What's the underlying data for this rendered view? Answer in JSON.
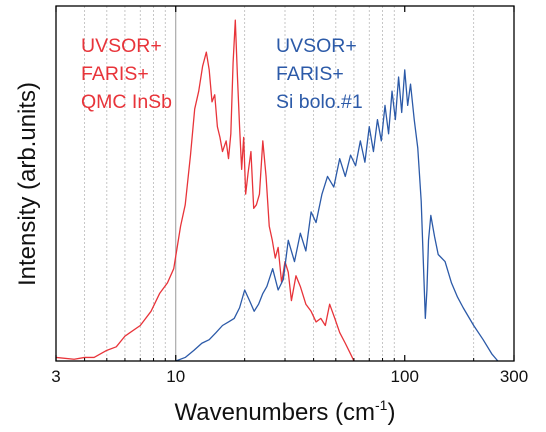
{
  "chart_data": {
    "type": "line",
    "title": "",
    "xlabel_prefix": "Wavenumbers (cm",
    "xlabel_sup": "-1",
    "xlabel_suffix": ")",
    "ylabel": "Intensity (arb.units)",
    "x_scale": "log",
    "xlim": [
      3,
      300
    ],
    "ylim": [
      0,
      1
    ],
    "x_ticks": [
      {
        "value": 3,
        "label": "3"
      },
      {
        "value": 10,
        "label": "10"
      },
      {
        "value": 100,
        "label": "100"
      },
      {
        "value": 300,
        "label": "300"
      }
    ],
    "y_ticks_labeled": false,
    "grid": "vertical dashed at minor decades",
    "minor_grid_x": [
      4,
      5,
      6,
      7,
      8,
      9,
      20,
      30,
      40,
      50,
      60,
      70,
      80,
      90,
      200
    ],
    "solid_line_at_x": 10,
    "legend": "none",
    "annotations": [
      {
        "lines": [
          "UVSOR+",
          "FARIS+",
          "QMC InSb"
        ],
        "color": "#e8343a"
      },
      {
        "lines": [
          "UVSOR+",
          "FARIS+",
          "Si bolo.#1"
        ],
        "color": "#2c5aa8"
      }
    ],
    "series": [
      {
        "color": "#e8343a",
        "x": [
          3.0,
          3.6,
          4.0,
          4.4,
          5.0,
          5.5,
          6.0,
          7.0,
          7.8,
          8.5,
          9.2,
          9.8,
          10.5,
          11.0,
          11.6,
          12.1,
          12.6,
          13.1,
          13.6,
          14.0,
          14.4,
          14.8,
          15.2,
          15.6,
          16.0,
          16.6,
          17.0,
          17.4,
          17.8,
          18.2,
          18.6,
          19.0,
          19.4,
          19.8,
          20.2,
          20.7,
          21.3,
          21.9,
          22.5,
          23.2,
          24.0,
          24.8,
          25.6,
          26.4,
          27.2,
          28.0,
          29.0,
          30.0,
          31.0,
          32.0,
          33.5,
          35.0,
          37.0,
          39.0,
          41.0,
          43.0,
          45.0,
          47.0,
          49.5,
          52.0,
          55.0,
          58.0,
          60.0
        ],
        "y": [
          0.01,
          0.005,
          0.01,
          0.01,
          0.03,
          0.04,
          0.07,
          0.1,
          0.14,
          0.19,
          0.22,
          0.26,
          0.38,
          0.44,
          0.58,
          0.71,
          0.76,
          0.83,
          0.87,
          0.82,
          0.73,
          0.75,
          0.66,
          0.63,
          0.59,
          0.62,
          0.57,
          0.64,
          0.84,
          0.96,
          0.8,
          0.66,
          0.54,
          0.63,
          0.47,
          0.53,
          0.59,
          0.43,
          0.44,
          0.47,
          0.62,
          0.52,
          0.38,
          0.34,
          0.29,
          0.32,
          0.22,
          0.28,
          0.25,
          0.17,
          0.24,
          0.21,
          0.16,
          0.14,
          0.11,
          0.12,
          0.1,
          0.16,
          0.12,
          0.08,
          0.05,
          0.02,
          0.0
        ]
      },
      {
        "color": "#2c5aa8",
        "x": [
          10.0,
          11.0,
          12.0,
          13.0,
          14.0,
          15.0,
          16.0,
          17.0,
          18.0,
          19.0,
          20.0,
          21.0,
          22.0,
          23.0,
          24.0,
          25.0,
          26.5,
          28.0,
          29.5,
          31.0,
          33.0,
          35.0,
          37.0,
          39.0,
          41.0,
          43.5,
          46.0,
          49.0,
          52.0,
          55.0,
          58.0,
          61.0,
          64.0,
          67.0,
          70.0,
          73.0,
          76.0,
          79.0,
          82.0,
          85.0,
          88.0,
          91.0,
          94.0,
          97.0,
          100.0,
          103.0,
          106.0,
          110.0,
          114.0,
          118.0,
          121.0,
          123.0,
          125.0,
          127.0,
          130.0,
          135.0,
          140.0,
          150.0,
          160.0,
          170.0,
          180.0,
          200.0,
          220.0,
          240.0,
          255.0
        ],
        "y": [
          0.0,
          0.01,
          0.03,
          0.05,
          0.06,
          0.08,
          0.1,
          0.11,
          0.12,
          0.15,
          0.2,
          0.17,
          0.14,
          0.16,
          0.19,
          0.21,
          0.26,
          0.2,
          0.23,
          0.34,
          0.28,
          0.36,
          0.31,
          0.42,
          0.39,
          0.47,
          0.52,
          0.49,
          0.57,
          0.52,
          0.58,
          0.55,
          0.62,
          0.56,
          0.66,
          0.59,
          0.68,
          0.62,
          0.72,
          0.64,
          0.76,
          0.68,
          0.8,
          0.7,
          0.82,
          0.72,
          0.78,
          0.68,
          0.6,
          0.45,
          0.25,
          0.12,
          0.2,
          0.34,
          0.41,
          0.35,
          0.3,
          0.28,
          0.22,
          0.18,
          0.15,
          0.1,
          0.06,
          0.02,
          0.0
        ]
      }
    ]
  }
}
